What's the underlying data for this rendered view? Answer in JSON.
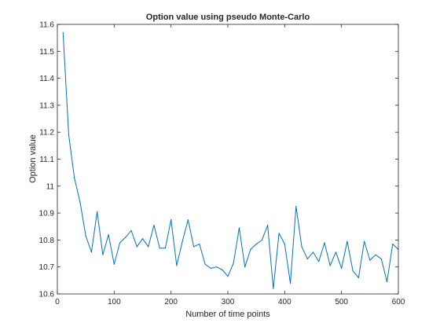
{
  "chart_data": {
    "type": "line",
    "title": "Option value using pseudo Monte-Carlo",
    "xlabel": "Number of time points",
    "ylabel": "Option value",
    "xlim": [
      0,
      600
    ],
    "ylim": [
      10.6,
      11.6
    ],
    "xticks": [
      0,
      100,
      200,
      300,
      400,
      500,
      600
    ],
    "yticks": [
      10.6,
      10.7,
      10.8,
      10.9,
      11.0,
      11.1,
      11.2,
      11.3,
      11.4,
      11.5,
      11.6
    ],
    "ytick_labels": [
      "10.6",
      "10.7",
      "10.8",
      "10.9",
      "11",
      "11.1",
      "11.2",
      "11.3",
      "11.4",
      "11.5",
      "11.6"
    ],
    "grid": false,
    "box": true,
    "series": [
      {
        "color": "#0072BD",
        "x": [
          10,
          20,
          30,
          40,
          50,
          60,
          70,
          80,
          90,
          100,
          110,
          120,
          130,
          140,
          150,
          160,
          170,
          180,
          190,
          200,
          210,
          220,
          230,
          240,
          250,
          260,
          270,
          280,
          290,
          300,
          310,
          320,
          330,
          340,
          350,
          360,
          370,
          380,
          390,
          400,
          410,
          420,
          430,
          440,
          450,
          460,
          470,
          480,
          490,
          500,
          510,
          520,
          530,
          540,
          550,
          560,
          570,
          580,
          590,
          600
        ],
        "y": [
          11.57,
          11.19,
          11.03,
          10.94,
          10.815,
          10.755,
          10.905,
          10.745,
          10.82,
          10.71,
          10.79,
          10.81,
          10.835,
          10.775,
          10.805,
          10.775,
          10.855,
          10.77,
          10.77,
          10.875,
          10.705,
          10.795,
          10.875,
          10.775,
          10.785,
          10.71,
          10.695,
          10.7,
          10.69,
          10.665,
          10.715,
          10.845,
          10.7,
          10.765,
          10.785,
          10.8,
          10.855,
          10.62,
          10.825,
          10.785,
          10.64,
          10.925,
          10.775,
          10.73,
          10.755,
          10.72,
          10.79,
          10.705,
          10.755,
          10.695,
          10.795,
          10.685,
          10.66,
          10.795,
          10.725,
          10.745,
          10.73,
          10.645,
          10.785,
          10.765
        ]
      }
    ]
  }
}
